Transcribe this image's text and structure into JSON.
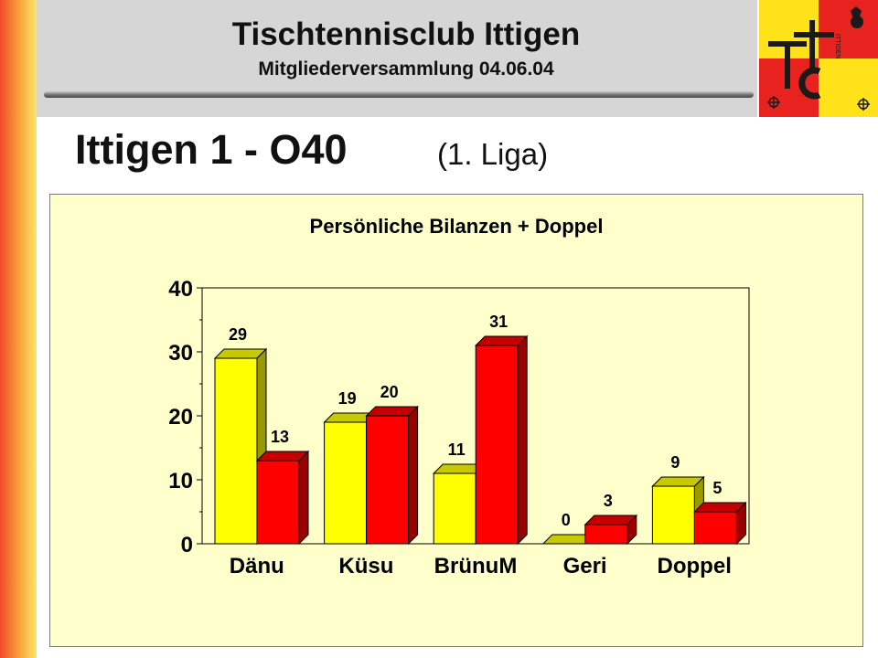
{
  "header": {
    "title": "Tischtennisclub Ittigen",
    "subtitle": "Mitgliederversammlung 04.06.04"
  },
  "logo": {
    "text": "TTC ITTIGEN",
    "colors": {
      "yellow": "#ffe21a",
      "red": "#e8231f",
      "dark": "#1a1a1a"
    }
  },
  "page": {
    "title": "Ittigen 1 - O40",
    "subtitle": "(1. Liga)"
  },
  "colors": {
    "series_yellow": "#ffff00",
    "series_yellow_side": "#9a9a00",
    "series_yellow_top": "#c9c900",
    "series_red": "#ff0000",
    "series_red_side": "#990000",
    "series_red_top": "#c40000",
    "panel_bg": "#ffffcc"
  },
  "chart_data": {
    "type": "bar",
    "title": "Persönliche Bilanzen + Doppel",
    "categories": [
      "Dänu",
      "Küsu",
      "BrünuM",
      "Geri",
      "Doppel"
    ],
    "series": [
      {
        "color": "#ffff00",
        "values": [
          29,
          19,
          11,
          0,
          9
        ]
      },
      {
        "color": "#ff0000",
        "values": [
          13,
          20,
          31,
          3,
          5
        ]
      }
    ],
    "ylim": [
      0,
      40
    ],
    "yticks": [
      0,
      10,
      20,
      30,
      40
    ],
    "xlabel": "",
    "ylabel": "",
    "grid": false,
    "legend": "none",
    "data_labels": true
  }
}
